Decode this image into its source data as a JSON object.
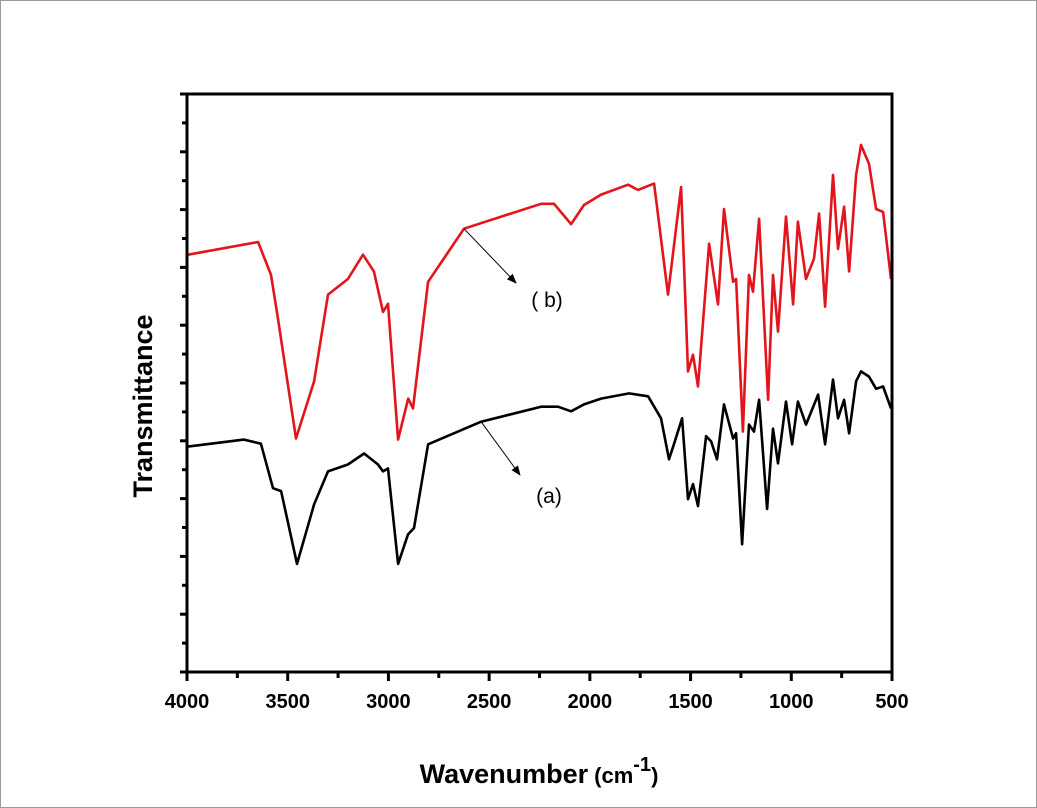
{
  "chart_data": {
    "type": "line",
    "title": "",
    "xlabel": "Wavenumber",
    "xlabel_unit": "(cm",
    "xlabel_sup": "-1",
    "xlabel_close": ")",
    "ylabel": "Transmittance",
    "xlim": [
      4000,
      500
    ],
    "x_reversed": true,
    "ylim": [
      0,
      100
    ],
    "y_tick_labels_shown": false,
    "x_ticks": [
      4000,
      3500,
      3000,
      2500,
      2000,
      1500,
      1000,
      500
    ],
    "x_tick_labels": [
      "4000",
      "3500",
      "3000",
      "2500",
      "2000",
      "1500",
      "1000",
      "500"
    ],
    "grid": false,
    "legend": "none",
    "annotations": [
      {
        "label": "( b)",
        "series": "b",
        "points_to": [
          2625,
          76.7
        ]
      },
      {
        "label": "(a)",
        "series": "a",
        "points_to": [
          2540,
          43.3
        ]
      }
    ],
    "series": [
      {
        "name": "( b)",
        "color": "#e3141b",
        "x": [
          3995,
          3647,
          3583,
          3548,
          3459,
          3369,
          3300,
          3201,
          3126,
          3072,
          3027,
          3002,
          2952,
          2902,
          2878,
          2803,
          2625,
          2242,
          2178,
          2093,
          2029,
          1944,
          1810,
          1761,
          1681,
          1612,
          1547,
          1513,
          1488,
          1463,
          1408,
          1364,
          1334,
          1289,
          1274,
          1240,
          1210,
          1190,
          1160,
          1115,
          1091,
          1066,
          1026,
          991,
          967,
          927,
          887,
          862,
          832,
          793,
          768,
          738,
          713,
          678,
          654,
          614,
          579,
          544,
          505
        ],
        "y": [
          72.2,
          74.4,
          68.7,
          61.1,
          40.4,
          50.3,
          65.3,
          68.0,
          72.2,
          69.3,
          62.3,
          63.7,
          40.2,
          47.3,
          45.6,
          67.5,
          76.7,
          81.0,
          81.0,
          77.5,
          80.8,
          82.6,
          84.3,
          83.4,
          84.5,
          65.3,
          83.9,
          52.0,
          54.9,
          49.4,
          74.1,
          63.6,
          80.1,
          67.5,
          68.0,
          41.6,
          68.7,
          65.8,
          78.4,
          47.1,
          68.7,
          58.9,
          78.8,
          63.6,
          77.9,
          68.0,
          71.5,
          79.3,
          63.2,
          86.0,
          73.2,
          80.5,
          69.3,
          86.0,
          91.2,
          87.9,
          80.1,
          79.6,
          68.0
        ]
      },
      {
        "name": "(a)",
        "color": "#000000",
        "x": [
          3995,
          3717,
          3633,
          3573,
          3533,
          3454,
          3369,
          3300,
          3201,
          3121,
          3052,
          3027,
          3002,
          2952,
          2903,
          2873,
          2803,
          2540,
          2242,
          2158,
          2093,
          2029,
          1944,
          1805,
          1711,
          1647,
          1607,
          1582,
          1542,
          1513,
          1488,
          1463,
          1423,
          1398,
          1369,
          1334,
          1289,
          1274,
          1244,
          1210,
          1185,
          1160,
          1120,
          1091,
          1066,
          1026,
          996,
          967,
          927,
          867,
          832,
          793,
          768,
          738,
          713,
          678,
          654,
          614,
          579,
          544,
          505
        ],
        "y": [
          39.0,
          40.2,
          39.5,
          31.8,
          31.3,
          18.7,
          29.0,
          34.7,
          35.9,
          37.8,
          35.9,
          34.7,
          35.2,
          18.7,
          23.8,
          24.9,
          39.4,
          43.3,
          45.9,
          45.9,
          45.1,
          46.3,
          47.3,
          48.2,
          47.7,
          43.9,
          36.8,
          39.5,
          43.9,
          29.9,
          32.5,
          28.7,
          40.8,
          39.9,
          36.8,
          46.3,
          40.4,
          41.3,
          22.1,
          42.8,
          41.6,
          47.1,
          28.2,
          42.1,
          36.1,
          46.8,
          39.4,
          46.8,
          42.8,
          48.0,
          39.4,
          50.6,
          43.9,
          47.1,
          41.3,
          50.3,
          52.0,
          51.1,
          49.0,
          49.4,
          45.6
        ]
      }
    ]
  }
}
